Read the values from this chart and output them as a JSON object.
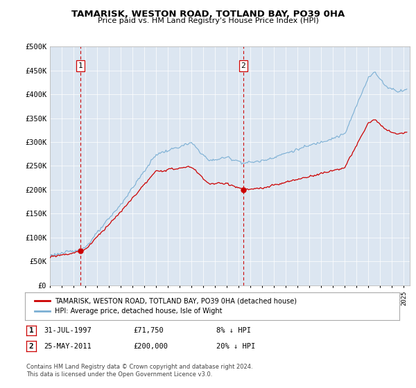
{
  "title": "TAMARISK, WESTON ROAD, TOTLAND BAY, PO39 0HA",
  "subtitle": "Price paid vs. HM Land Registry's House Price Index (HPI)",
  "background_color": "#dce6f1",
  "plot_bg_color": "#dce6f1",
  "ylim": [
    0,
    500000
  ],
  "yticks": [
    0,
    50000,
    100000,
    150000,
    200000,
    250000,
    300000,
    350000,
    400000,
    450000,
    500000
  ],
  "ytick_labels": [
    "£0",
    "£50K",
    "£100K",
    "£150K",
    "£200K",
    "£250K",
    "£300K",
    "£350K",
    "£400K",
    "£450K",
    "£500K"
  ],
  "sale1_date_num": 1997.58,
  "sale1_price": 71750,
  "sale2_date_num": 2011.39,
  "sale2_price": 200000,
  "legend_red_label": "TAMARISK, WESTON ROAD, TOTLAND BAY, PO39 0HA (detached house)",
  "legend_blue_label": "HPI: Average price, detached house, Isle of Wight",
  "footer": "Contains HM Land Registry data © Crown copyright and database right 2024.\nThis data is licensed under the Open Government Licence v3.0.",
  "red_color": "#cc0000",
  "blue_color": "#7bafd4",
  "dashed_red": "#cc0000",
  "grid_color": "#ffffff",
  "spine_color": "#aaaaaa"
}
